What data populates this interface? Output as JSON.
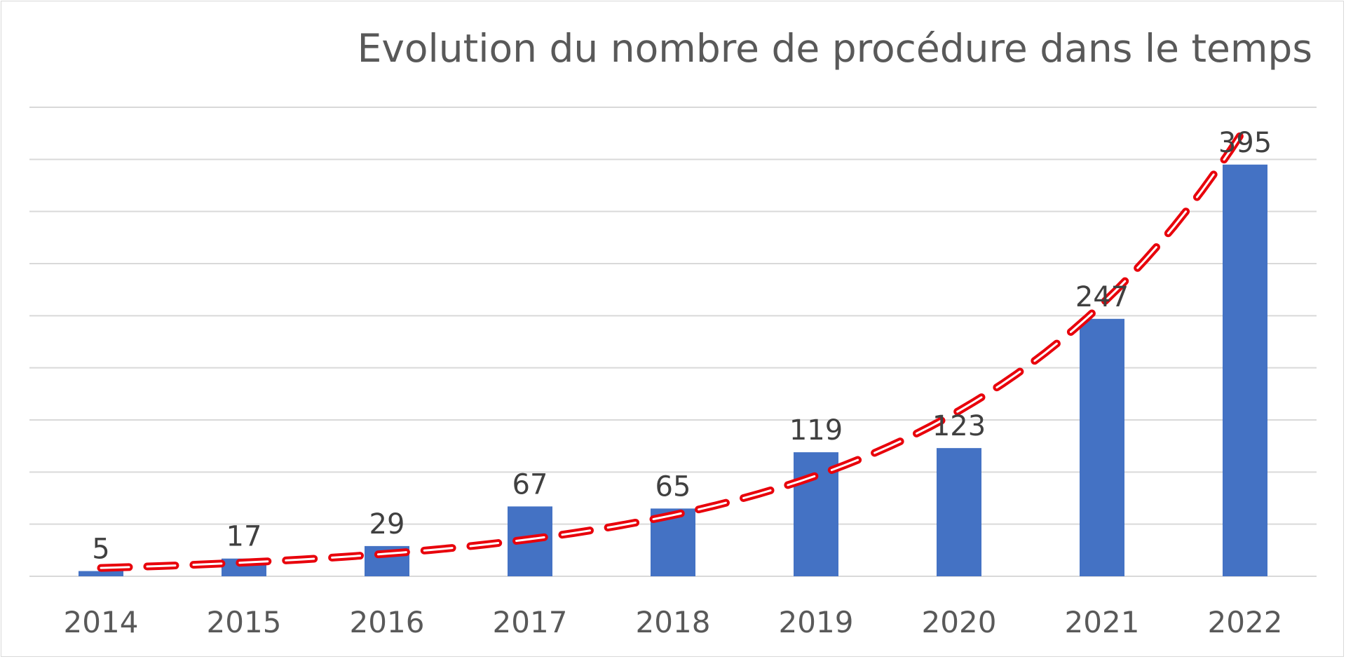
{
  "chart_data": {
    "type": "bar",
    "title": "Evolution du nombre de procédure dans le temps",
    "xlabel": "",
    "ylabel": "",
    "categories": [
      "2014",
      "2015",
      "2016",
      "2017",
      "2018",
      "2019",
      "2020",
      "2021",
      "2022"
    ],
    "values": [
      5,
      17,
      29,
      67,
      65,
      119,
      123,
      247,
      395
    ],
    "data_labels": [
      "5",
      "17",
      "29",
      "67",
      "65",
      "119",
      "123",
      "247",
      "395"
    ],
    "ylim": [
      0,
      450
    ],
    "y_tick_step": 50,
    "grid": true,
    "legend": "none",
    "trendline": {
      "type": "exponential",
      "style": "dashed",
      "start_value": 8,
      "end_value": 430
    },
    "colors": {
      "bar": "#4472C4",
      "trend": "#E8000B",
      "grid": "#d9d9d9",
      "text": "#595959"
    }
  }
}
